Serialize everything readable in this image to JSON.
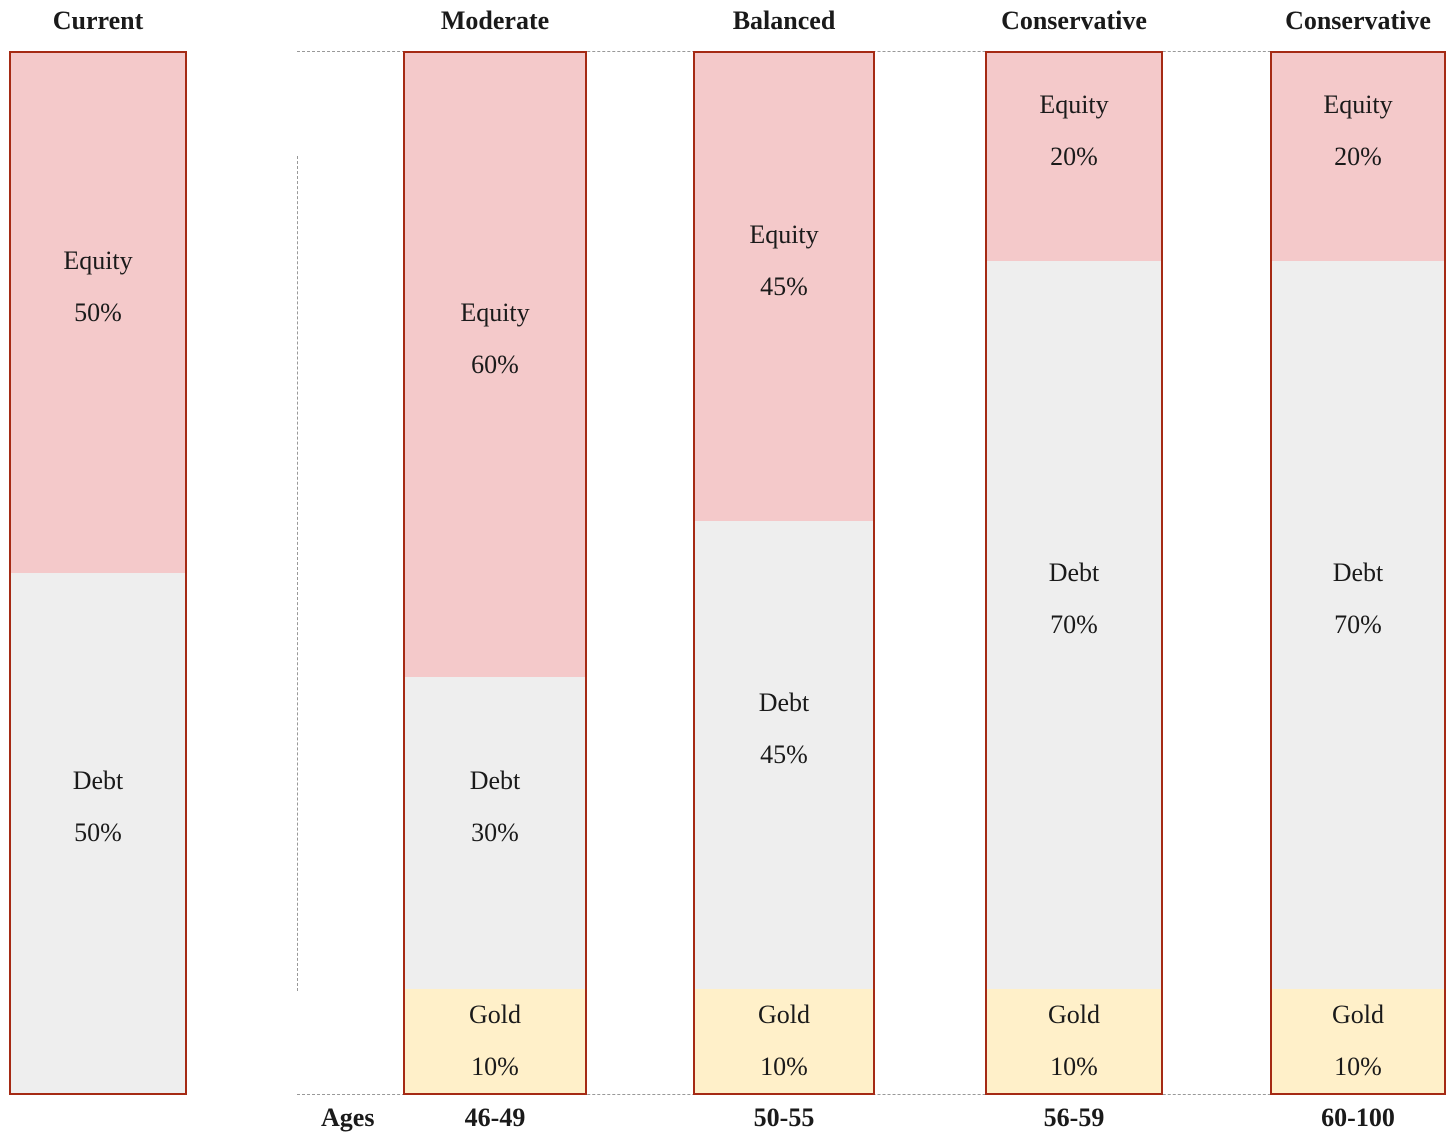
{
  "chart_data": {
    "type": "bar",
    "stacked": true,
    "orientation": "vertical",
    "segment_order_top_to_bottom": [
      "Equity",
      "Debt",
      "Gold"
    ],
    "colors": {
      "Equity": "#f4c9ca",
      "Debt": "#eeeeee",
      "Gold": "#fff0c9",
      "border": "#a52a14",
      "guide": "#999999"
    },
    "ages_caption": "Ages",
    "columns": [
      {
        "title": "Current",
        "age": "",
        "segments": [
          {
            "name": "Equity",
            "value": 50,
            "label": "Equity",
            "value_label": "50%"
          },
          {
            "name": "Debt",
            "value": 50,
            "label": "Debt",
            "value_label": "50%"
          }
        ]
      },
      {
        "title": "Moderate",
        "age": "46-49",
        "segments": [
          {
            "name": "Equity",
            "value": 60,
            "label": "Equity",
            "value_label": "60%"
          },
          {
            "name": "Debt",
            "value": 30,
            "label": "Debt",
            "value_label": "30%"
          },
          {
            "name": "Gold",
            "value": 10,
            "label": "Gold",
            "value_label": "10%"
          }
        ]
      },
      {
        "title": "Balanced",
        "age": "50-55",
        "segments": [
          {
            "name": "Equity",
            "value": 45,
            "label": "Equity",
            "value_label": "45%"
          },
          {
            "name": "Debt",
            "value": 45,
            "label": "Debt",
            "value_label": "45%"
          },
          {
            "name": "Gold",
            "value": 10,
            "label": "Gold",
            "value_label": "10%"
          }
        ]
      },
      {
        "title": "Conservative",
        "age": "56-59",
        "segments": [
          {
            "name": "Equity",
            "value": 20,
            "label": "Equity",
            "value_label": "20%"
          },
          {
            "name": "Debt",
            "value": 70,
            "label": "Debt",
            "value_label": "70%"
          },
          {
            "name": "Gold",
            "value": 10,
            "label": "Gold",
            "value_label": "10%"
          }
        ]
      },
      {
        "title": "Conservative",
        "age": "60-100",
        "segments": [
          {
            "name": "Equity",
            "value": 20,
            "label": "Equity",
            "value_label": "20%"
          },
          {
            "name": "Debt",
            "value": 70,
            "label": "Debt",
            "value_label": "70%"
          },
          {
            "name": "Gold",
            "value": 10,
            "label": "Gold",
            "value_label": "10%"
          }
        ]
      }
    ]
  }
}
